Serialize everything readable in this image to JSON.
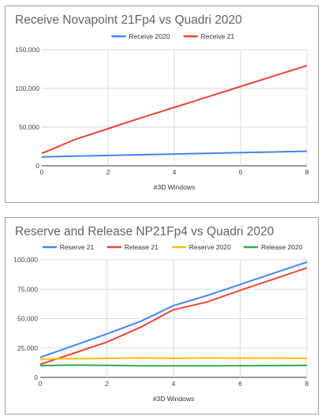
{
  "chart_data": [
    {
      "type": "line",
      "title": "Receive Novapoint 21Fp4 vs Quadri 2020",
      "xlabel": "#3D Windows",
      "ylabel": "",
      "xlim": [
        0,
        8
      ],
      "ylim": [
        0,
        150000
      ],
      "x_ticks": [
        0,
        2,
        4,
        6,
        8
      ],
      "x_tick_labels": [
        "0",
        "2",
        "4",
        "6",
        "8"
      ],
      "y_ticks": [
        0,
        50000,
        100000,
        150000
      ],
      "y_tick_labels": [
        "0",
        "50,000",
        "100,000",
        "150,000"
      ],
      "grid": true,
      "legend_position": "top",
      "series": [
        {
          "name": "Receive 2020",
          "color": "#4285f4",
          "x": [
            0,
            1,
            2,
            3,
            4,
            5,
            6,
            7,
            8
          ],
          "y": [
            11500,
            12500,
            13400,
            14300,
            15200,
            16100,
            17000,
            17900,
            18800
          ]
        },
        {
          "name": "Receive 21",
          "color": "#ea4335",
          "x": [
            0,
            1,
            2,
            3,
            4,
            5,
            6,
            7,
            8
          ],
          "y": [
            16000,
            34000,
            48000,
            62000,
            75500,
            89000,
            102500,
            116000,
            129500
          ]
        }
      ]
    },
    {
      "type": "line",
      "title": "Reserve and Release NP21Fp4 vs Quadri 2020",
      "xlabel": "#3D Windows",
      "ylabel": "",
      "xlim": [
        0,
        8
      ],
      "ylim": [
        0,
        100000
      ],
      "x_ticks": [
        0,
        2,
        4,
        6,
        8
      ],
      "x_tick_labels": [
        "0",
        "2",
        "4",
        "6",
        "8"
      ],
      "y_ticks": [
        0,
        25000,
        50000,
        75000,
        100000
      ],
      "y_tick_labels": [
        "0",
        "25,000",
        "50,000",
        "75,000",
        "100,000"
      ],
      "grid": true,
      "legend_position": "top",
      "series": [
        {
          "name": "Reserve 21",
          "color": "#4285f4",
          "x": [
            0,
            1,
            2,
            3,
            4,
            5,
            6,
            7,
            8
          ],
          "y": [
            17000,
            27000,
            37000,
            47500,
            61000,
            69500,
            79000,
            88500,
            98000
          ]
        },
        {
          "name": "Release 21",
          "color": "#ea4335",
          "x": [
            0,
            1,
            2,
            3,
            4,
            5,
            6,
            7,
            8
          ],
          "y": [
            11000,
            20500,
            30000,
            42500,
            57500,
            64000,
            74000,
            83500,
            93000
          ]
        },
        {
          "name": "Reserve 2020",
          "color": "#fbbc04",
          "x": [
            0,
            1,
            2,
            3,
            4,
            5,
            6,
            7,
            8
          ],
          "y": [
            15500,
            16000,
            16200,
            16500,
            16200,
            16500,
            16300,
            16400,
            16200
          ]
        },
        {
          "name": "Release 2020",
          "color": "#34a853",
          "x": [
            0,
            1,
            2,
            3,
            4,
            5,
            6,
            7,
            8
          ],
          "y": [
            10000,
            10500,
            10200,
            9800,
            9800,
            9800,
            9900,
            10000,
            10200
          ]
        }
      ]
    }
  ]
}
